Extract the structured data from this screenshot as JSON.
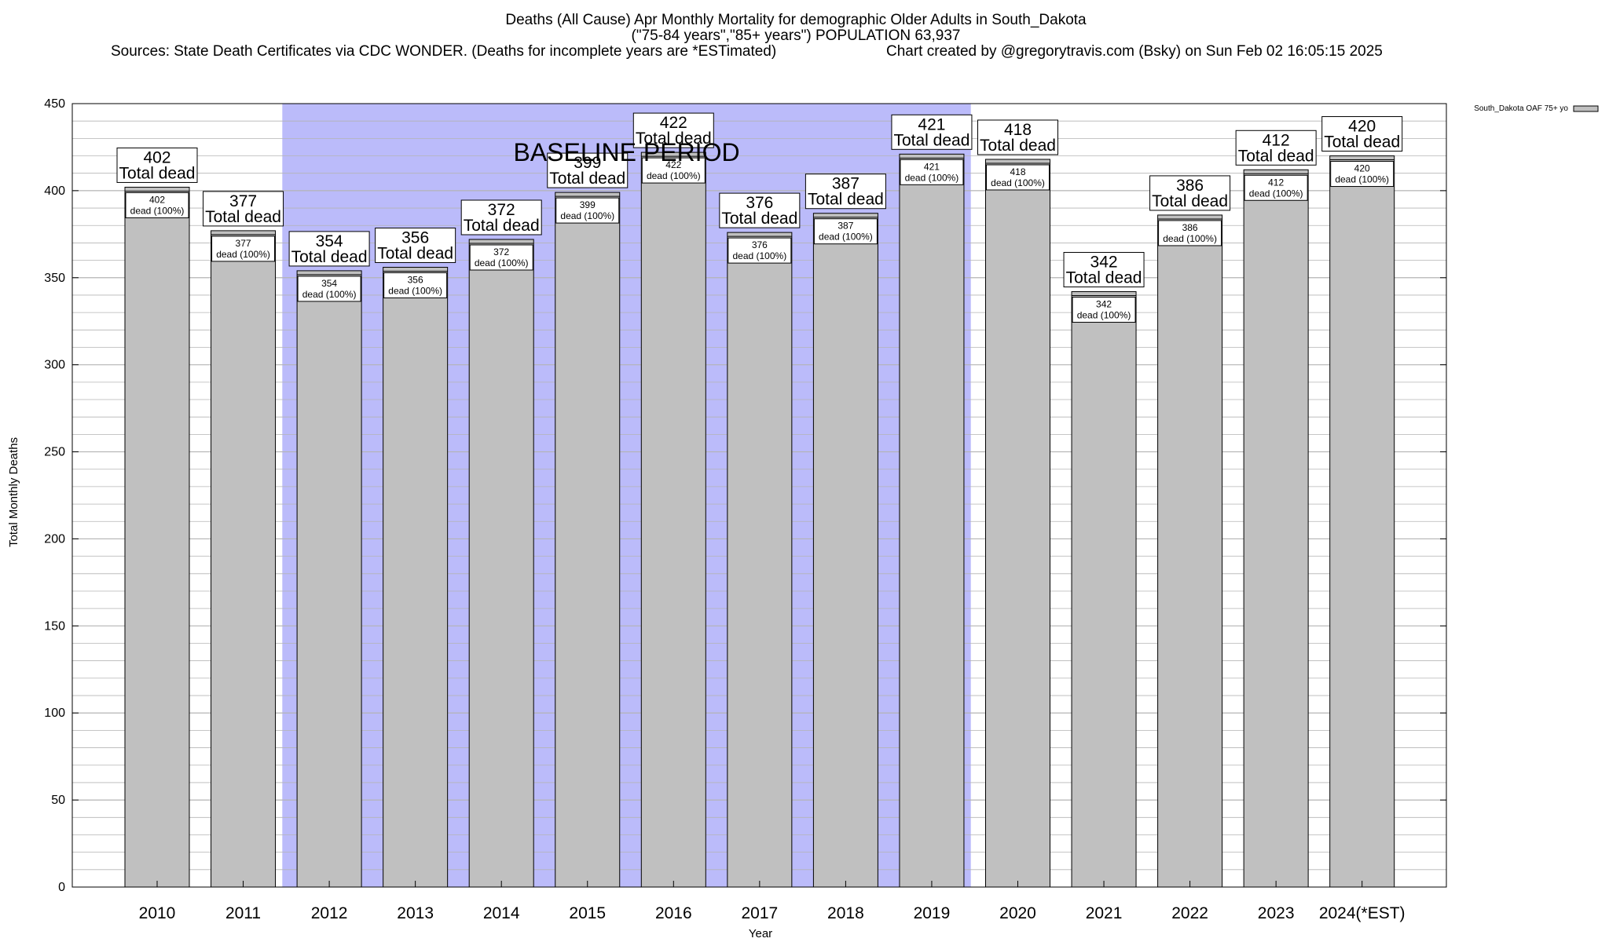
{
  "header": {
    "title_line1": "Deaths (All Cause) Apr Monthly Mortality for demographic Older Adults in South_Dakota",
    "title_line2": "(\"75-84 years\",\"85+ years\") POPULATION 63,937",
    "title_line3a": "Sources: State Death Certificates via CDC WONDER. (Deaths for incomplete years are *ESTimated)",
    "title_line3b": "Chart created by @gregorytravis.com (Bsky) on Sun Feb 02 16:05:15 2025"
  },
  "chart_data": {
    "type": "bar",
    "xlabel": "Year",
    "ylabel": "Total Monthly Deaths",
    "ylim": [
      0,
      450
    ],
    "yticks": [
      0,
      50,
      100,
      150,
      200,
      250,
      300,
      350,
      400,
      450
    ],
    "categories": [
      "2010",
      "2011",
      "2012",
      "2013",
      "2014",
      "2015",
      "2016",
      "2017",
      "2018",
      "2019",
      "2020",
      "2021",
      "2022",
      "2023",
      "2024(*EST)"
    ],
    "series": [
      {
        "name": "South_Dakota OAF 75+ yo",
        "values": [
          402,
          377,
          354,
          356,
          372,
          399,
          422,
          376,
          387,
          421,
          418,
          342,
          386,
          412,
          420
        ]
      }
    ],
    "total_label_text": "Total dead",
    "inner_label_text": "dead (100%)",
    "baseline_period": {
      "label": "BASELINE PERIOD",
      "start_category": "2012",
      "end_category": "2019"
    },
    "legend_placement": "top-right",
    "grid": true,
    "colors": {
      "bar_fill": "#c0c0c0",
      "baseline_fill": "#bbbbfa",
      "grid": "#b4b4b4"
    }
  }
}
